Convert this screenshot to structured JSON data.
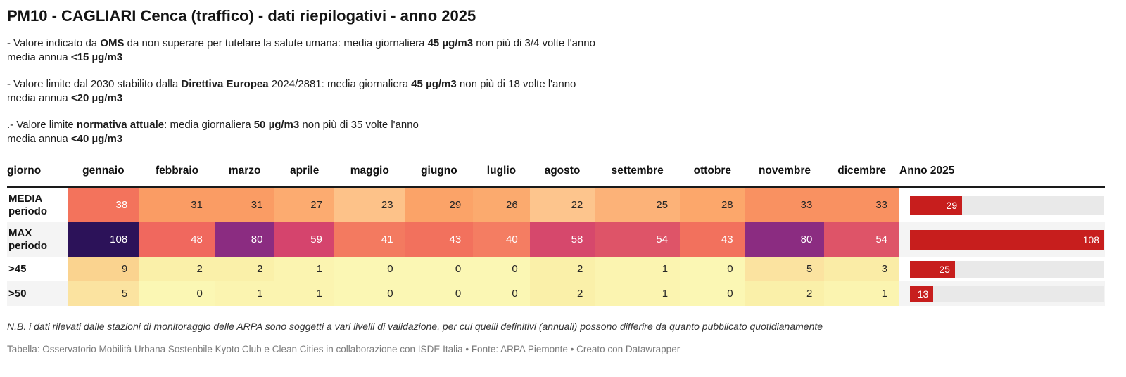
{
  "title": "PM10 - CAGLIARI Cenca (traffico) - dati riepilogativi - anno 2025",
  "notes": [
    {
      "lines": [
        [
          {
            "t": "- Valore indicato da "
          },
          {
            "t": "OMS",
            "b": true
          },
          {
            "t": " da non superare per tutelare la salute umana: media giornaliera "
          },
          {
            "t": "45 µg/m3",
            "b": true
          },
          {
            "t": " non più di 3/4 volte l'anno"
          }
        ],
        [
          {
            "t": "media annua "
          },
          {
            "t": "<15 µg/m3",
            "b": true
          }
        ]
      ]
    },
    {
      "lines": [
        [
          {
            "t": "- Valore limite dal 2030 stabilito dalla "
          },
          {
            "t": "Direttiva Europea",
            "b": true
          },
          {
            "t": " 2024/2881: media giornaliera "
          },
          {
            "t": "45 µg/m3",
            "b": true
          },
          {
            "t": " non più di 18 volte l'anno"
          }
        ],
        [
          {
            "t": "media annua "
          },
          {
            "t": "<20 µg/m3",
            "b": true
          }
        ]
      ]
    },
    {
      "lines": [
        [
          {
            "t": ".- Valore limite "
          },
          {
            "t": "normativa attuale",
            "b": true
          },
          {
            "t": ": media giornaliera "
          },
          {
            "t": "50 µg/m3",
            "b": true
          },
          {
            "t": " non più di 35 volte l'anno"
          }
        ],
        [
          {
            "t": "media annua "
          },
          {
            "t": "<40 µg/m3",
            "b": true
          }
        ]
      ]
    }
  ],
  "chart_data": {
    "type": "heatmap",
    "title": "PM10 - CAGLIARI Cenca (traffico) - dati riepilogativi - anno 2025",
    "columns": [
      "giorno",
      "gennaio",
      "febbraio",
      "marzo",
      "aprile",
      "maggio",
      "giugno",
      "luglio",
      "agosto",
      "settembre",
      "ottobre",
      "novembre",
      "dicembre",
      "Anno 2025"
    ],
    "rows": [
      {
        "label": "MEDIA periodo",
        "values": [
          38,
          31,
          31,
          27,
          23,
          29,
          26,
          22,
          25,
          28,
          33,
          33
        ],
        "anno": 29
      },
      {
        "label": "MAX periodo",
        "values": [
          108,
          48,
          80,
          59,
          41,
          43,
          40,
          58,
          54,
          43,
          80,
          54
        ],
        "anno": 108
      },
      {
        "label": ">45",
        "values": [
          9,
          2,
          2,
          1,
          0,
          0,
          0,
          2,
          1,
          0,
          5,
          3
        ],
        "anno": 25
      },
      {
        "label": ">50",
        "values": [
          5,
          0,
          1,
          1,
          0,
          0,
          0,
          2,
          1,
          0,
          2,
          1
        ],
        "anno": 13
      }
    ],
    "annual_column": "Anno 2025",
    "annual_bar_max": 108,
    "legend_position": "none",
    "grid": false
  },
  "table": {
    "row_label_lines": [
      [
        "MEDIA",
        "periodo"
      ],
      [
        "MAX",
        "periodo"
      ],
      [
        ">45"
      ],
      [
        ">50"
      ]
    ],
    "cell_bg": [
      [
        "#f3735c",
        "#fa9c64",
        "#fa9c64",
        "#fcab70",
        "#fdc289",
        "#fba368",
        "#fbaa6e",
        "#fdc58d",
        "#fcb278",
        "#fca76b",
        "#f99161",
        "#f99161"
      ],
      [
        "#2c1259",
        "#f0685e",
        "#8b2c81",
        "#d5446d",
        "#f37a60",
        "#f2715d",
        "#f47d62",
        "#d6486c",
        "#de5468",
        "#f2715d",
        "#8b2c81",
        "#de5468"
      ],
      [
        "#fad38f",
        "#faf0a9",
        "#faf0a9",
        "#fbf4b0",
        "#fbf7b4",
        "#fbf7b4",
        "#fbf7b4",
        "#faf0a9",
        "#fbf4b0",
        "#fbf7b4",
        "#fbe3a0",
        "#faeca6"
      ],
      [
        "#fbe3a0",
        "#fbf7b4",
        "#fbf4b0",
        "#fbf4b0",
        "#fbf7b4",
        "#fbf7b4",
        "#fbf7b4",
        "#faf0a9",
        "#fbf4b0",
        "#fbf7b4",
        "#faf0a9",
        "#fbf4b0"
      ]
    ],
    "bar_color": "#c71e1d",
    "bar_track_color": "#e9e9e9",
    "text_dark": "#262626",
    "text_light": "#ffffff"
  },
  "footer": {
    "note": "N.B. i dati rilevati dalle stazioni di monitoraggio delle ARPA sono soggetti a vari livelli di validazione, per cui quelli definitivi (annuali) possono differire da quanto pubblicato quotidianamente",
    "attribution": "Tabella: Osservatorio Mobilità Urbana Sostenbile Kyoto Club e Clean Cities in collaborazione con ISDE Italia • Fonte: ARPA Piemonte • Creato con Datawrapper"
  }
}
